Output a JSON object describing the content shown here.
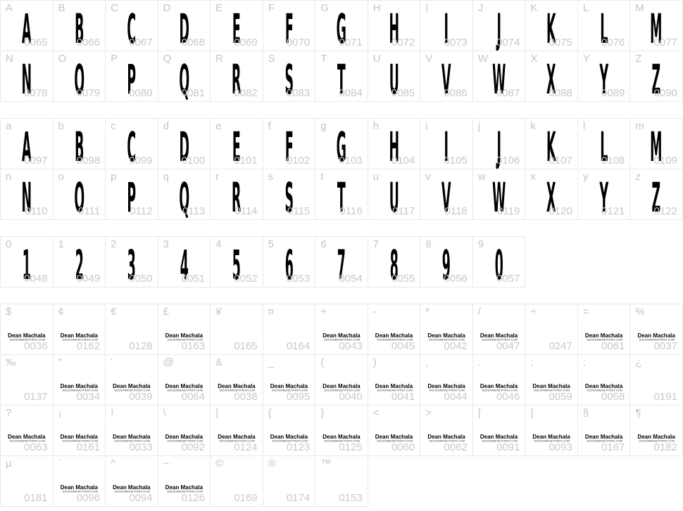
{
  "page": {
    "background": "#ffffff",
    "cell_border_color": "#e9e9e9",
    "label_color": "#c5c5c5",
    "code_color": "#c9c9c9",
    "glyph_color": "#000000"
  },
  "watermark": {
    "name": "Dean Machala",
    "url": "DESIGNMENETFIRST.COM"
  },
  "groups": [
    {
      "name": "uppercase",
      "rows": [
        {
          "cells": [
            {
              "label": "A",
              "code": "0065",
              "glyph": "A"
            },
            {
              "label": "B",
              "code": "0066",
              "glyph": "B"
            },
            {
              "label": "C",
              "code": "0067",
              "glyph": "C"
            },
            {
              "label": "D",
              "code": "0068",
              "glyph": "D"
            },
            {
              "label": "E",
              "code": "0069",
              "glyph": "E"
            },
            {
              "label": "F",
              "code": "0070",
              "glyph": "F"
            },
            {
              "label": "G",
              "code": "0071",
              "glyph": "G"
            },
            {
              "label": "H",
              "code": "0072",
              "glyph": "H"
            },
            {
              "label": "I",
              "code": "0073",
              "glyph": "I"
            },
            {
              "label": "J",
              "code": "0074",
              "glyph": "J"
            },
            {
              "label": "K",
              "code": "0075",
              "glyph": "K"
            },
            {
              "label": "L",
              "code": "0076",
              "glyph": "L"
            },
            {
              "label": "M",
              "code": "0077",
              "glyph": "M"
            }
          ]
        },
        {
          "cells": [
            {
              "label": "N",
              "code": "0078",
              "glyph": "N"
            },
            {
              "label": "O",
              "code": "0079",
              "glyph": "O"
            },
            {
              "label": "P",
              "code": "0080",
              "glyph": "P"
            },
            {
              "label": "Q",
              "code": "0081",
              "glyph": "Q"
            },
            {
              "label": "R",
              "code": "0082",
              "glyph": "R"
            },
            {
              "label": "S",
              "code": "0083",
              "glyph": "S"
            },
            {
              "label": "T",
              "code": "0084",
              "glyph": "T"
            },
            {
              "label": "U",
              "code": "0085",
              "glyph": "U"
            },
            {
              "label": "V",
              "code": "0086",
              "glyph": "V"
            },
            {
              "label": "W",
              "code": "0087",
              "glyph": "W"
            },
            {
              "label": "X",
              "code": "0088",
              "glyph": "X"
            },
            {
              "label": "Y",
              "code": "0089",
              "glyph": "Y"
            },
            {
              "label": "Z",
              "code": "0090",
              "glyph": "Z"
            }
          ]
        }
      ]
    },
    {
      "name": "lowercase",
      "rows": [
        {
          "cells": [
            {
              "label": "a",
              "code": "0097",
              "glyph": "A"
            },
            {
              "label": "b",
              "code": "0098",
              "glyph": "B"
            },
            {
              "label": "c",
              "code": "0099",
              "glyph": "C"
            },
            {
              "label": "d",
              "code": "0100",
              "glyph": "D"
            },
            {
              "label": "e",
              "code": "0101",
              "glyph": "E"
            },
            {
              "label": "f",
              "code": "0102",
              "glyph": "F"
            },
            {
              "label": "g",
              "code": "0103",
              "glyph": "G"
            },
            {
              "label": "h",
              "code": "0104",
              "glyph": "H"
            },
            {
              "label": "i",
              "code": "0105",
              "glyph": "I"
            },
            {
              "label": "j",
              "code": "0106",
              "glyph": "J"
            },
            {
              "label": "k",
              "code": "0107",
              "glyph": "K"
            },
            {
              "label": "l",
              "code": "0108",
              "glyph": "L"
            },
            {
              "label": "m",
              "code": "0109",
              "glyph": "M"
            }
          ]
        },
        {
          "cells": [
            {
              "label": "n",
              "code": "0110",
              "glyph": "N"
            },
            {
              "label": "o",
              "code": "0111",
              "glyph": "O"
            },
            {
              "label": "p",
              "code": "0112",
              "glyph": "P"
            },
            {
              "label": "q",
              "code": "0113",
              "glyph": "Q"
            },
            {
              "label": "r",
              "code": "0114",
              "glyph": "R"
            },
            {
              "label": "s",
              "code": "0115",
              "glyph": "S"
            },
            {
              "label": "t",
              "code": "0116",
              "glyph": "T"
            },
            {
              "label": "u",
              "code": "0117",
              "glyph": "U"
            },
            {
              "label": "v",
              "code": "0118",
              "glyph": "V"
            },
            {
              "label": "w",
              "code": "0119",
              "glyph": "W"
            },
            {
              "label": "x",
              "code": "0120",
              "glyph": "X"
            },
            {
              "label": "y",
              "code": "0121",
              "glyph": "Y"
            },
            {
              "label": "z",
              "code": "0122",
              "glyph": "Z"
            }
          ]
        }
      ]
    },
    {
      "name": "digits",
      "rows": [
        {
          "cells": [
            {
              "label": "0",
              "code": "0048",
              "glyph": "1"
            },
            {
              "label": "1",
              "code": "0049",
              "glyph": "2"
            },
            {
              "label": "2",
              "code": "0050",
              "glyph": "3"
            },
            {
              "label": "3",
              "code": "0051",
              "glyph": "4"
            },
            {
              "label": "4",
              "code": "0052",
              "glyph": "5"
            },
            {
              "label": "5",
              "code": "0053",
              "glyph": "6"
            },
            {
              "label": "6",
              "code": "0054",
              "glyph": "7"
            },
            {
              "label": "7",
              "code": "0055",
              "glyph": "8"
            },
            {
              "label": "8",
              "code": "0056",
              "glyph": "9"
            },
            {
              "label": "9",
              "code": "0057",
              "glyph": "0"
            }
          ]
        }
      ]
    },
    {
      "name": "symbols",
      "rows": [
        {
          "cells": [
            {
              "label": "$",
              "code": "0036",
              "wm": true
            },
            {
              "label": "¢",
              "code": "0162",
              "wm": true
            },
            {
              "label": "€",
              "code": "0128"
            },
            {
              "label": "£",
              "code": "0163",
              "wm": true
            },
            {
              "label": "¥",
              "code": "0165"
            },
            {
              "label": "¤",
              "code": "0164"
            },
            {
              "label": "+",
              "code": "0043",
              "wm": true
            },
            {
              "label": "-",
              "code": "0045",
              "wm": true
            },
            {
              "label": "*",
              "code": "0042",
              "wm": true
            },
            {
              "label": "/",
              "code": "0047",
              "wm": true
            },
            {
              "label": "÷",
              "code": "0247"
            },
            {
              "label": "=",
              "code": "0061",
              "wm": true
            },
            {
              "label": "%",
              "code": "0037",
              "wm": true
            }
          ]
        },
        {
          "cells": [
            {
              "label": "‰",
              "code": "0137"
            },
            {
              "label": "\"",
              "code": "0034",
              "wm": true
            },
            {
              "label": "'",
              "code": "0039",
              "wm": true
            },
            {
              "label": "@",
              "code": "0064",
              "wm": true
            },
            {
              "label": "&",
              "code": "0038",
              "wm": true
            },
            {
              "label": "_",
              "code": "0095",
              "wm": true
            },
            {
              "label": "(",
              "code": "0040",
              "wm": true
            },
            {
              "label": ")",
              "code": "0041",
              "wm": true
            },
            {
              "label": ",",
              "code": "0044",
              "wm": true
            },
            {
              "label": ".",
              "code": "0046",
              "wm": true
            },
            {
              "label": ";",
              "code": "0059",
              "wm": true
            },
            {
              "label": ":",
              "code": "0058",
              "wm": true
            },
            {
              "label": "¿",
              "code": "0191"
            }
          ]
        },
        {
          "cells": [
            {
              "label": "?",
              "code": "0063",
              "wm": true
            },
            {
              "label": "¡",
              "code": "0161",
              "wm": true
            },
            {
              "label": "!",
              "code": "0033",
              "wm": true
            },
            {
              "label": "\\",
              "code": "0092",
              "wm": true
            },
            {
              "label": "|",
              "code": "0124",
              "wm": true
            },
            {
              "label": "{",
              "code": "0123",
              "wm": true
            },
            {
              "label": "}",
              "code": "0125",
              "wm": true
            },
            {
              "label": "<",
              "code": "0060",
              "wm": true
            },
            {
              "label": ">",
              "code": "0062",
              "wm": true
            },
            {
              "label": "[",
              "code": "0091",
              "wm": true
            },
            {
              "label": "]",
              "code": "0093",
              "wm": true
            },
            {
              "label": "§",
              "code": "0167",
              "wm": true
            },
            {
              "label": "¶",
              "code": "0182",
              "wm": true
            }
          ]
        },
        {
          "cells": [
            {
              "label": "µ",
              "code": "0181"
            },
            {
              "label": "`",
              "code": "0096",
              "wm": true
            },
            {
              "label": "^",
              "code": "0094",
              "wm": true
            },
            {
              "label": "~",
              "code": "0126",
              "wm": true
            },
            {
              "label": "©",
              "code": "0169"
            },
            {
              "label": "®",
              "code": "0174"
            },
            {
              "label": "™",
              "code": "0153"
            }
          ]
        }
      ]
    }
  ]
}
